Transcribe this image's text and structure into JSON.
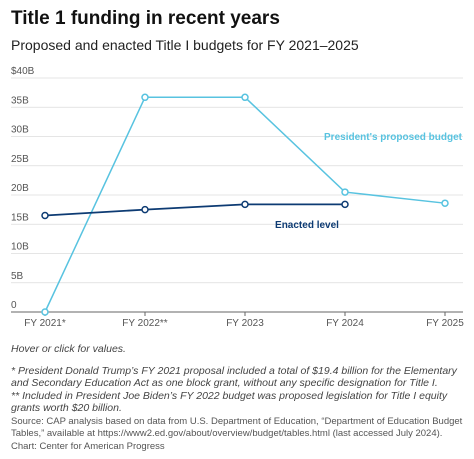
{
  "header": {
    "title": "Title 1 funding in recent years",
    "subtitle": "Proposed and enacted Title I budgets for FY 2021–2025"
  },
  "footer": {
    "hint": "Hover or click for values.",
    "note1": "* President Donald Trump’s FY 2021 proposal included a total of $19.4 billion for the Elementary and Secondary Education Act as one block grant, without any specific designation for Title I.",
    "note2": "** Included in President Joe Biden’s FY 2022 budget was proposed legislation for Title I equity grants worth $20 billion.",
    "source": "Source: CAP analysis based on data from U.S. Department of Education, “Department of Education Budget Tables,” available at https://www2.ed.gov/about/overview/budget/tables.html (last accessed July 2024).",
    "credit": "Chart: Center for American Progress"
  },
  "chart_data": {
    "type": "line",
    "x": [
      "FY 2021*",
      "FY 2022**",
      "FY 2023",
      "FY 2024",
      "FY 2025"
    ],
    "ylim": [
      0,
      40
    ],
    "yticks": [
      "0",
      "5B",
      "10B",
      "15B",
      "20B",
      "25B",
      "30B",
      "35B",
      "$40B"
    ],
    "yticks_values": [
      0,
      5,
      10,
      15,
      20,
      25,
      30,
      35,
      40
    ],
    "grid": true,
    "series": [
      {
        "name": "President's proposed budget",
        "color": "#58c3e0",
        "values": [
          0,
          36.7,
          36.7,
          20.5,
          18.6
        ]
      },
      {
        "name": "Enacted level",
        "color": "#0d3b73",
        "values": [
          16.5,
          17.5,
          18.4,
          18.4,
          null
        ]
      }
    ]
  }
}
